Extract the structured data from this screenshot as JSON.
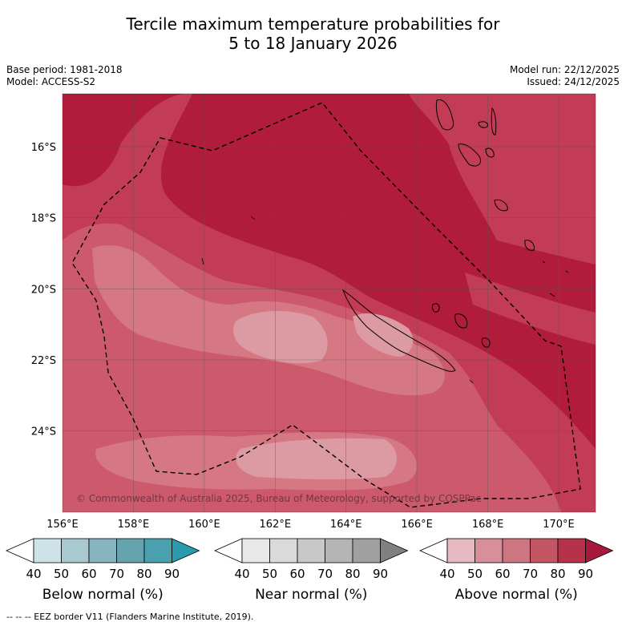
{
  "title": {
    "line1": "Tercile maximum temperature probabilities for",
    "line2": "5 to 18 January 2026"
  },
  "meta_left": {
    "base_period": "Base period: 1981-2018",
    "model": "Model: ACCESS-S2"
  },
  "meta_right": {
    "model_run": "Model run: 22/12/2025",
    "issued": "Issued: 24/12/2025"
  },
  "map": {
    "lon_range": [
      155.5,
      171
    ],
    "lat_range": [
      -26,
      -14.25
    ],
    "lat_ticks": [
      {
        "value": -16,
        "label": "16°S"
      },
      {
        "value": -18,
        "label": "18°S"
      },
      {
        "value": -20,
        "label": "20°S"
      },
      {
        "value": -22,
        "label": "22°S"
      },
      {
        "value": -24,
        "label": "24°S"
      }
    ],
    "lon_ticks": [
      {
        "value": 156,
        "label": "156°E"
      },
      {
        "value": 158,
        "label": "158°E"
      },
      {
        "value": 160,
        "label": "160°E"
      },
      {
        "value": 162,
        "label": "162°E"
      },
      {
        "value": 164,
        "label": "164°E"
      },
      {
        "value": 166,
        "label": "166°E"
      },
      {
        "value": 168,
        "label": "168°E"
      },
      {
        "value": 170,
        "label": "170°E"
      }
    ],
    "copyright": "© Commonwealth of Australia 2025, Bureau of Meteorology, supported by COSPPac",
    "gridlines": true
  },
  "colorbars": [
    {
      "label": "Below normal (%)",
      "ticks": [
        "40",
        "50",
        "60",
        "70",
        "80",
        "90"
      ],
      "colors": [
        "#ffffff",
        "#cde3e8",
        "#a7c9cf",
        "#86b5bf",
        "#65a3ae",
        "#4ba0ad",
        "#2b9aac"
      ]
    },
    {
      "label": "Near normal (%)",
      "ticks": [
        "40",
        "50",
        "60",
        "70",
        "80",
        "90"
      ],
      "colors": [
        "#ffffff",
        "#e8e8e8",
        "#dadada",
        "#c8c8c8",
        "#b4b4b4",
        "#a0a0a0",
        "#808080"
      ]
    },
    {
      "label": "Above normal (%)",
      "ticks": [
        "40",
        "50",
        "60",
        "70",
        "80",
        "90"
      ],
      "colors": [
        "#ffffff",
        "#e4b9c1",
        "#d98f9a",
        "#cd7580",
        "#c25663",
        "#b5324a",
        "#a8183a"
      ]
    }
  ],
  "footer": "--  --  -- EEZ border V11 (Flanders Marine Institute, 2019)."
}
